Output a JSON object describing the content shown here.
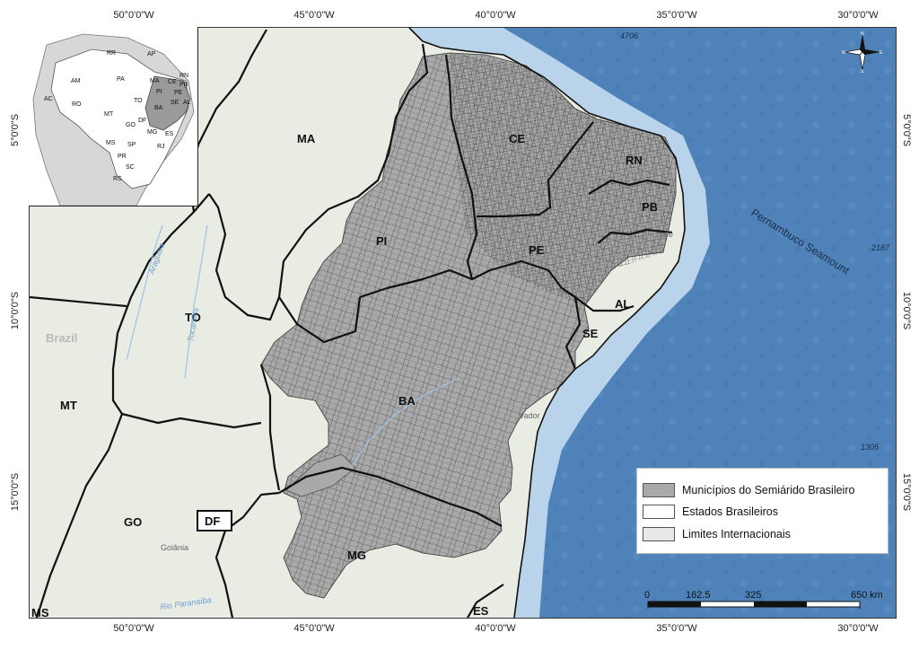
{
  "graticule": {
    "top": [
      "50°0'0\"W",
      "45°0'0\"W",
      "40°0'0\"W",
      "35°0'0\"W",
      "30°0'0\"W"
    ],
    "bottom": [
      "50°0'0\"W",
      "45°0'0\"W",
      "40°0'0\"W",
      "35°0'0\"W",
      "30°0'0\"W"
    ],
    "left": [
      "5°0'0\"S",
      "10°0'0\"S",
      "15°0'0\"S"
    ],
    "right": [
      "5°0'0\"S",
      "10°0'0\"S",
      "15°0'0\"S"
    ]
  },
  "states": {
    "ma": "MA",
    "ce": "CE",
    "rn": "RN",
    "pb": "PB",
    "pi": "PI",
    "pe": "PE",
    "al": "AL",
    "se": "SE",
    "to": "TO",
    "ba": "BA",
    "mt": "MT",
    "go": "GO",
    "df": "DF",
    "mg": "MG",
    "es": "ES",
    "ms": "MS"
  },
  "place_labels": {
    "country": "Brazil",
    "goiania": "Goiânia",
    "recife": "cife",
    "salvador": "vador"
  },
  "river_labels": {
    "araguaia": "Araguaia",
    "tocantins": "Tocantins",
    "paranaiba": "Rio Paranaíba"
  },
  "ocean": {
    "seamount": "Pernambuco Seamount",
    "depth_1": "4706",
    "depth_2": "2187",
    "depth_3": "1305"
  },
  "legend": {
    "items": [
      {
        "label": "Municípios do Semiárido Brasileiro",
        "color": "#a9a9a9"
      },
      {
        "label": "Estados Brasileiros",
        "color": "#ffffff"
      },
      {
        "label": "Limites Internacionais",
        "color": "#e8e8e8"
      }
    ]
  },
  "scale_bar": {
    "ticks": [
      "0",
      "162.5",
      "325",
      "650"
    ],
    "unit": "km"
  },
  "north_arrow": {
    "n": "N",
    "s": "S",
    "e": "E",
    "w": "W"
  },
  "inset": {
    "labels": [
      "RR",
      "AP",
      "AM",
      "PA",
      "MA",
      "CE",
      "RN",
      "PB",
      "PI",
      "PE",
      "AC",
      "RO",
      "TO",
      "AL",
      "SE",
      "BA",
      "MT",
      "GO",
      "DF",
      "MG",
      "ES",
      "MS",
      "SP",
      "RJ",
      "PR",
      "SC",
      "RS"
    ]
  },
  "colors": {
    "ocean": "#4e82b9",
    "shelf": "#b9d3ea",
    "land": "#e9ece3",
    "semiarid": "#a9a9a9",
    "state_border": "#111111"
  }
}
